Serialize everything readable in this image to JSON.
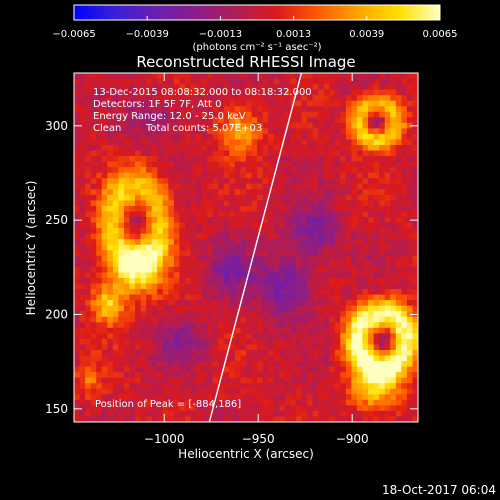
{
  "chart_data": {
    "type": "heatmap",
    "title": "Reconstructed RHESSI Image",
    "xlabel": "Heliocentric X (arcsec)",
    "ylabel": "Heliocentric Y (arcsec)",
    "xlim": [
      -1048,
      -865
    ],
    "ylim": [
      143,
      328
    ],
    "x_ticks": [
      {
        "value": -1000,
        "label": "−1000"
      },
      {
        "value": -950,
        "label": "−950"
      },
      {
        "value": -900,
        "label": "−900"
      }
    ],
    "y_ticks": [
      {
        "value": 150,
        "label": "150"
      },
      {
        "value": 200,
        "label": "200"
      },
      {
        "value": 250,
        "label": "250"
      },
      {
        "value": 300,
        "label": "300"
      }
    ],
    "colorbar": {
      "min": -0.0065,
      "max": 0.0065,
      "ticks": [
        {
          "value": -0.0065,
          "label": "−0.0065"
        },
        {
          "value": -0.0039,
          "label": "−0.0039"
        },
        {
          "value": -0.0013,
          "label": "−0.0013"
        },
        {
          "value": 0.0013,
          "label": "0.0013"
        },
        {
          "value": 0.0039,
          "label": "0.0039"
        },
        {
          "value": 0.0065,
          "label": "0.0065"
        }
      ],
      "units_label": "(photons cm⁻² s⁻¹ asec⁻²)",
      "colormap": [
        "#0000ff",
        "#3b1fd8",
        "#6a1fb0",
        "#8a1e8a",
        "#b01d55",
        "#dc1a1a",
        "#ff5a00",
        "#ffa500",
        "#ffe000",
        "#ffffc0"
      ]
    },
    "annotations": [
      "13-Dec-2015 08:08:32.000 to 08:18:32.000",
      "Detectors: 1F 5F 7F, Att 0",
      "Energy Range: 12.0 - 25.0 keV",
      "Clean",
      "Total counts: 5.07E+03"
    ],
    "peak_label": "Position of Peak = [-884,186]",
    "sources": [
      {
        "x": -1015,
        "y": 248,
        "sx": 12,
        "sy": 18,
        "amp": 0.0042,
        "shape": "ring"
      },
      {
        "x": -1016,
        "y": 225,
        "sx": 11,
        "sy": 11,
        "amp": 0.0038,
        "shape": "blob"
      },
      {
        "x": -1030,
        "y": 205,
        "sx": 6,
        "sy": 7,
        "amp": 0.0044,
        "shape": "blob"
      },
      {
        "x": -960,
        "y": 298,
        "sx": 8,
        "sy": 9,
        "amp": 0.0034,
        "shape": "blob"
      },
      {
        "x": -887,
        "y": 302,
        "sx": 9,
        "sy": 9,
        "amp": 0.0045,
        "shape": "ring"
      },
      {
        "x": -884,
        "y": 186,
        "sx": 12,
        "sy": 13,
        "amp": 0.0062,
        "shape": "ring"
      },
      {
        "x": -888,
        "y": 160,
        "sx": 10,
        "sy": 8,
        "amp": 0.0039,
        "shape": "blob"
      },
      {
        "x": -1040,
        "y": 165,
        "sx": 5,
        "sy": 6,
        "amp": 0.0022,
        "shape": "blob"
      },
      {
        "x": -935,
        "y": 215,
        "sx": 10,
        "sy": 12,
        "amp": -0.0033,
        "shape": "blob"
      },
      {
        "x": -965,
        "y": 225,
        "sx": 8,
        "sy": 10,
        "amp": -0.0027,
        "shape": "blob"
      },
      {
        "x": -920,
        "y": 245,
        "sx": 9,
        "sy": 9,
        "amp": -0.003,
        "shape": "blob"
      },
      {
        "x": -990,
        "y": 185,
        "sx": 9,
        "sy": 8,
        "amp": -0.0022,
        "shape": "blob"
      },
      {
        "x": -1005,
        "y": 305,
        "sx": 10,
        "sy": 8,
        "amp": -0.0018,
        "shape": "blob"
      }
    ],
    "limb": {
      "x": [
        -927,
        -976
      ],
      "y": [
        328,
        143
      ]
    }
  },
  "timestamp": "18-Oct-2017 06:04"
}
